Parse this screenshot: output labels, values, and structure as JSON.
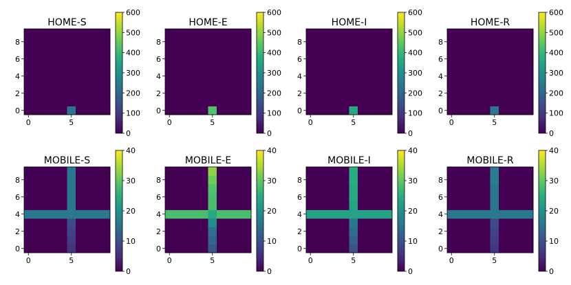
{
  "chart_data": {
    "type": "heatmap",
    "colormap": "viridis",
    "grid": false,
    "x_ticks": [
      0,
      5
    ],
    "y_ticks": [
      0,
      2,
      4,
      6,
      8
    ],
    "panels": [
      {
        "title": "HOME-S",
        "vmin": 0,
        "vmax": 600,
        "colorbar_ticks": [
          0,
          100,
          200,
          300,
          400,
          500,
          600
        ],
        "cells": [
          {
            "x": 5,
            "y": 0,
            "value": 235
          }
        ],
        "background": 0
      },
      {
        "title": "HOME-E",
        "vmin": 0,
        "vmax": 600,
        "colorbar_ticks": [
          0,
          100,
          200,
          300,
          400,
          500,
          600
        ],
        "cells": [
          {
            "x": 5,
            "y": 0,
            "value": 430
          }
        ],
        "background": 0
      },
      {
        "title": "HOME-I",
        "vmin": 0,
        "vmax": 600,
        "colorbar_ticks": [
          0,
          100,
          200,
          300,
          400,
          500,
          600
        ],
        "cells": [
          {
            "x": 5,
            "y": 0,
            "value": 360
          }
        ],
        "background": 0
      },
      {
        "title": "HOME-R",
        "vmin": 0,
        "vmax": 600,
        "colorbar_ticks": [
          0,
          100,
          200,
          300,
          400,
          500,
          600
        ],
        "cells": [
          {
            "x": 5,
            "y": 0,
            "value": 235
          }
        ],
        "background": 0
      },
      {
        "title": "MOBILE-S",
        "vmin": 0,
        "vmax": 40,
        "colorbar_ticks": [
          0,
          10,
          20,
          30,
          40
        ],
        "row": {
          "y": 4,
          "value": 16
        },
        "column": {
          "x": 5,
          "values": [
            6,
            7,
            8,
            9,
            16,
            16,
            16,
            16,
            16,
            16
          ]
        },
        "background": 0
      },
      {
        "title": "MOBILE-E",
        "vmin": 0,
        "vmax": 40,
        "colorbar_ticks": [
          0,
          10,
          20,
          30,
          40
        ],
        "row": {
          "y": 4,
          "value": 28
        },
        "column": {
          "x": 5,
          "values": [
            11,
            13,
            15,
            19,
            24,
            28,
            28,
            29,
            31,
            33
          ]
        },
        "background": 0
      },
      {
        "title": "MOBILE-I",
        "vmin": 0,
        "vmax": 40,
        "colorbar_ticks": [
          0,
          10,
          20,
          30,
          40
        ],
        "row": {
          "y": 4,
          "value": 23
        },
        "column": {
          "x": 5,
          "values": [
            10,
            12,
            14,
            16,
            23,
            23,
            24,
            24,
            25,
            25
          ]
        },
        "background": 0
      },
      {
        "title": "MOBILE-R",
        "vmin": 0,
        "vmax": 40,
        "colorbar_ticks": [
          0,
          10,
          20,
          30,
          40
        ],
        "row": {
          "y": 4,
          "value": 16
        },
        "column": {
          "x": 5,
          "values": [
            6,
            7,
            8,
            9,
            16,
            16,
            16,
            16,
            17,
            17
          ]
        },
        "background": 0
      }
    ]
  }
}
